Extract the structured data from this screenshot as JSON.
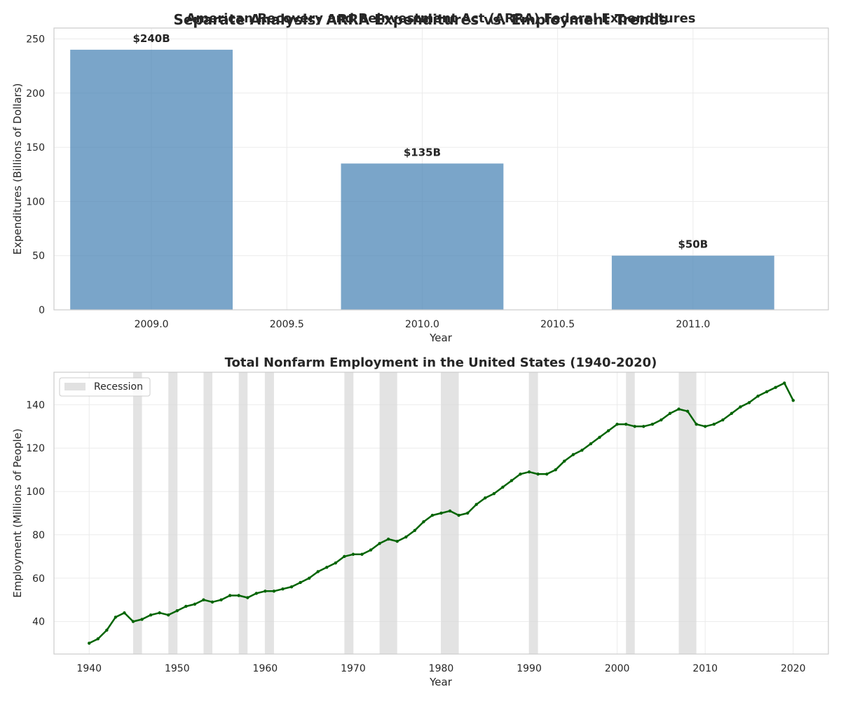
{
  "figure": {
    "suptitle": "Separate Analysis: ARRA Expenditures vs. Employment Trends"
  },
  "chart_data": [
    {
      "type": "bar",
      "title": "American Recovery and Reinvestment Act (ARRA) Federal Expenditures",
      "xlabel": "Year",
      "ylabel": "Expenditures (Billions of Dollars)",
      "categories": [
        2009,
        2010,
        2011
      ],
      "values": [
        240,
        135,
        50
      ],
      "bar_labels": [
        "$240B",
        "$135B",
        "$50B"
      ],
      "bar_width_years": 0.6,
      "xlim": [
        2008.64,
        2011.5
      ],
      "ylim": [
        0,
        260
      ],
      "xticks": [
        2009.0,
        2009.5,
        2010.0,
        2010.5,
        2011.0
      ],
      "xtick_labels": [
        "2009.0",
        "2009.5",
        "2010.0",
        "2010.5",
        "2011.0"
      ],
      "yticks": [
        0,
        50,
        100,
        150,
        200,
        250
      ],
      "color": "#4682B4",
      "grid": true
    },
    {
      "type": "line",
      "title": "Total Nonfarm Employment in the United States (1940-2020)",
      "xlabel": "Year",
      "ylabel": "Employment (Millions of People)",
      "x": [
        1940,
        1941,
        1942,
        1943,
        1944,
        1945,
        1946,
        1947,
        1948,
        1949,
        1950,
        1951,
        1952,
        1953,
        1954,
        1955,
        1956,
        1957,
        1958,
        1959,
        1960,
        1961,
        1962,
        1963,
        1964,
        1965,
        1966,
        1967,
        1968,
        1969,
        1970,
        1971,
        1972,
        1973,
        1974,
        1975,
        1976,
        1977,
        1978,
        1979,
        1980,
        1981,
        1982,
        1983,
        1984,
        1985,
        1986,
        1987,
        1988,
        1989,
        1990,
        1991,
        1992,
        1993,
        1994,
        1995,
        1996,
        1997,
        1998,
        1999,
        2000,
        2001,
        2002,
        2003,
        2004,
        2005,
        2006,
        2007,
        2008,
        2009,
        2010,
        2011,
        2012,
        2013,
        2014,
        2015,
        2016,
        2017,
        2018,
        2019,
        2020
      ],
      "series": [
        {
          "values": [
            30,
            32,
            36,
            42,
            44,
            40,
            41,
            43,
            44,
            43,
            45,
            47,
            48,
            50,
            49,
            50,
            52,
            52,
            51,
            53,
            54,
            54,
            55,
            56,
            58,
            60,
            63,
            65,
            67,
            70,
            71,
            71,
            73,
            76,
            78,
            77,
            79,
            82,
            86,
            89,
            90,
            91,
            89,
            90,
            94,
            97,
            99,
            102,
            105,
            108,
            109,
            108,
            108,
            110,
            114,
            117,
            119,
            122,
            125,
            128,
            131,
            131,
            130,
            130,
            131,
            133,
            136,
            138,
            137,
            131,
            130,
            131,
            133,
            136,
            139,
            141,
            144,
            146,
            148,
            150,
            142
          ]
        }
      ],
      "recessions": [
        [
          1945,
          1946
        ],
        [
          1949,
          1950
        ],
        [
          1953,
          1954
        ],
        [
          1957,
          1958
        ],
        [
          1960,
          1961
        ],
        [
          1969,
          1970
        ],
        [
          1973,
          1975
        ],
        [
          1980,
          1982
        ],
        [
          1990,
          1991
        ],
        [
          2001,
          2002
        ],
        [
          2007,
          2009
        ]
      ],
      "legend": {
        "entries": [
          "Recession"
        ],
        "placement": "upper-left"
      },
      "xlim": [
        1936,
        2024
      ],
      "ylim": [
        25,
        155
      ],
      "xticks": [
        1940,
        1950,
        1960,
        1970,
        1980,
        1990,
        2000,
        2010,
        2020
      ],
      "yticks": [
        40,
        60,
        80,
        100,
        120,
        140
      ],
      "line_color": "#006400",
      "recession_color": "#d9d9d9",
      "grid": true
    }
  ]
}
